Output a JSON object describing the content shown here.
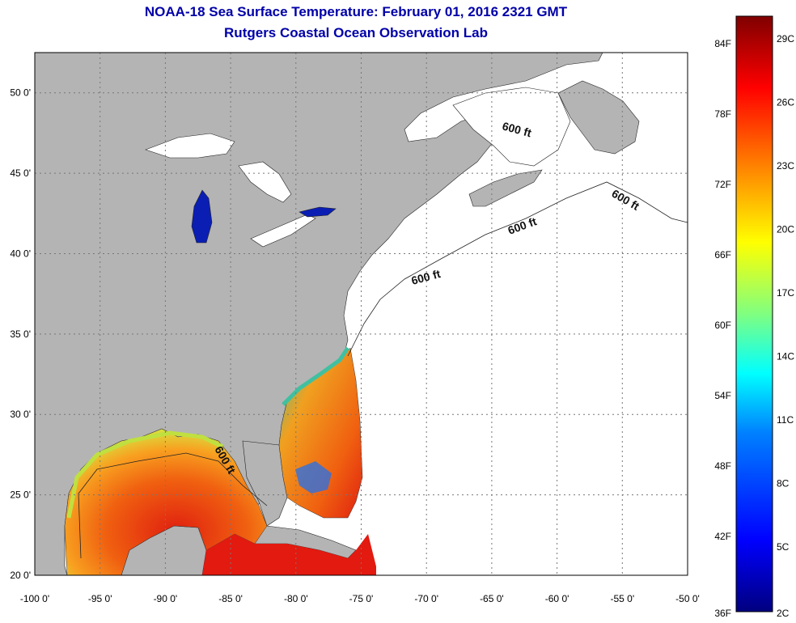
{
  "header": {
    "title": "NOAA-18 Sea Surface Temperature:  February 01, 2016 2321 GMT",
    "subtitle": "Rutgers Coastal Ocean Observation Lab"
  },
  "map": {
    "lon_range": [
      -100,
      -50
    ],
    "lat_range": [
      20,
      52.5
    ],
    "lon_ticks": [
      "-100 0'",
      "-95 0'",
      "-90 0'",
      "-85 0'",
      "-80 0'",
      "-75 0'",
      "-70 0'",
      "-65 0'",
      "-60 0'",
      "-55 0'",
      "-50 0'"
    ],
    "lat_ticks": [
      "20 0'",
      "25 0'",
      "30 0'",
      "35 0'",
      "40 0'",
      "45 0'",
      "50 0'"
    ],
    "contour_labels": [
      "600 ft",
      "600 ft",
      "600 ft",
      "600 ft",
      "600 ft"
    ],
    "colors": {
      "land": "#b4b4b4",
      "ocean_nodata": "#ffffff",
      "lake_cold": "#0a1eb4",
      "grid": "#777777"
    }
  },
  "colorbar": {
    "fahrenheit_labels": [
      "84F",
      "78F",
      "72F",
      "66F",
      "60F",
      "54F",
      "48F",
      "42F",
      "36F"
    ],
    "celsius_labels": [
      "29C",
      "26C",
      "23C",
      "20C",
      "17C",
      "14C",
      "11C",
      "8C",
      "5C",
      "2C"
    ],
    "gradient_stops": [
      "#00007f",
      "#0000ff",
      "#0080ff",
      "#00ffff",
      "#80ff80",
      "#ffff00",
      "#ff8000",
      "#ff0000",
      "#7f0000"
    ]
  }
}
